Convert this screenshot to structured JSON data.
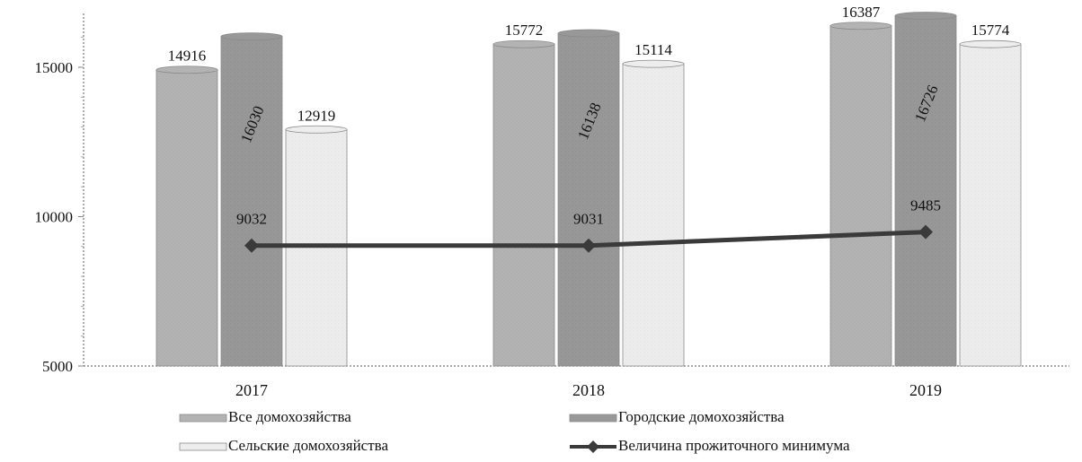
{
  "chart_data": {
    "type": "bar",
    "categories": [
      "2017",
      "2018",
      "2019"
    ],
    "series": [
      {
        "name": "Все домохозяйства",
        "values": [
          14916,
          15772,
          16387
        ],
        "color": "#b3b3b3"
      },
      {
        "name": "Городские домохозяйства",
        "values": [
          16030,
          16138,
          16726
        ],
        "color": "#989898"
      },
      {
        "name": "Сельские домохозяйства",
        "values": [
          12919,
          15114,
          15774
        ],
        "color": "#ededed"
      }
    ],
    "line_series": {
      "name": "Величина прожиточного минимума",
      "type": "line",
      "values": [
        9032,
        9031,
        9485
      ],
      "color": "#3a3a3a"
    },
    "ylim": [
      5000,
      16800
    ],
    "yticks": [
      5000,
      10000,
      15000
    ],
    "ytick_labels": [
      "5000",
      "10000",
      "15000"
    ],
    "title": "",
    "xlabel": "",
    "ylabel": "",
    "grid": false,
    "legend_position": "bottom",
    "rotated_label_series": "Городские домохозяйства"
  }
}
